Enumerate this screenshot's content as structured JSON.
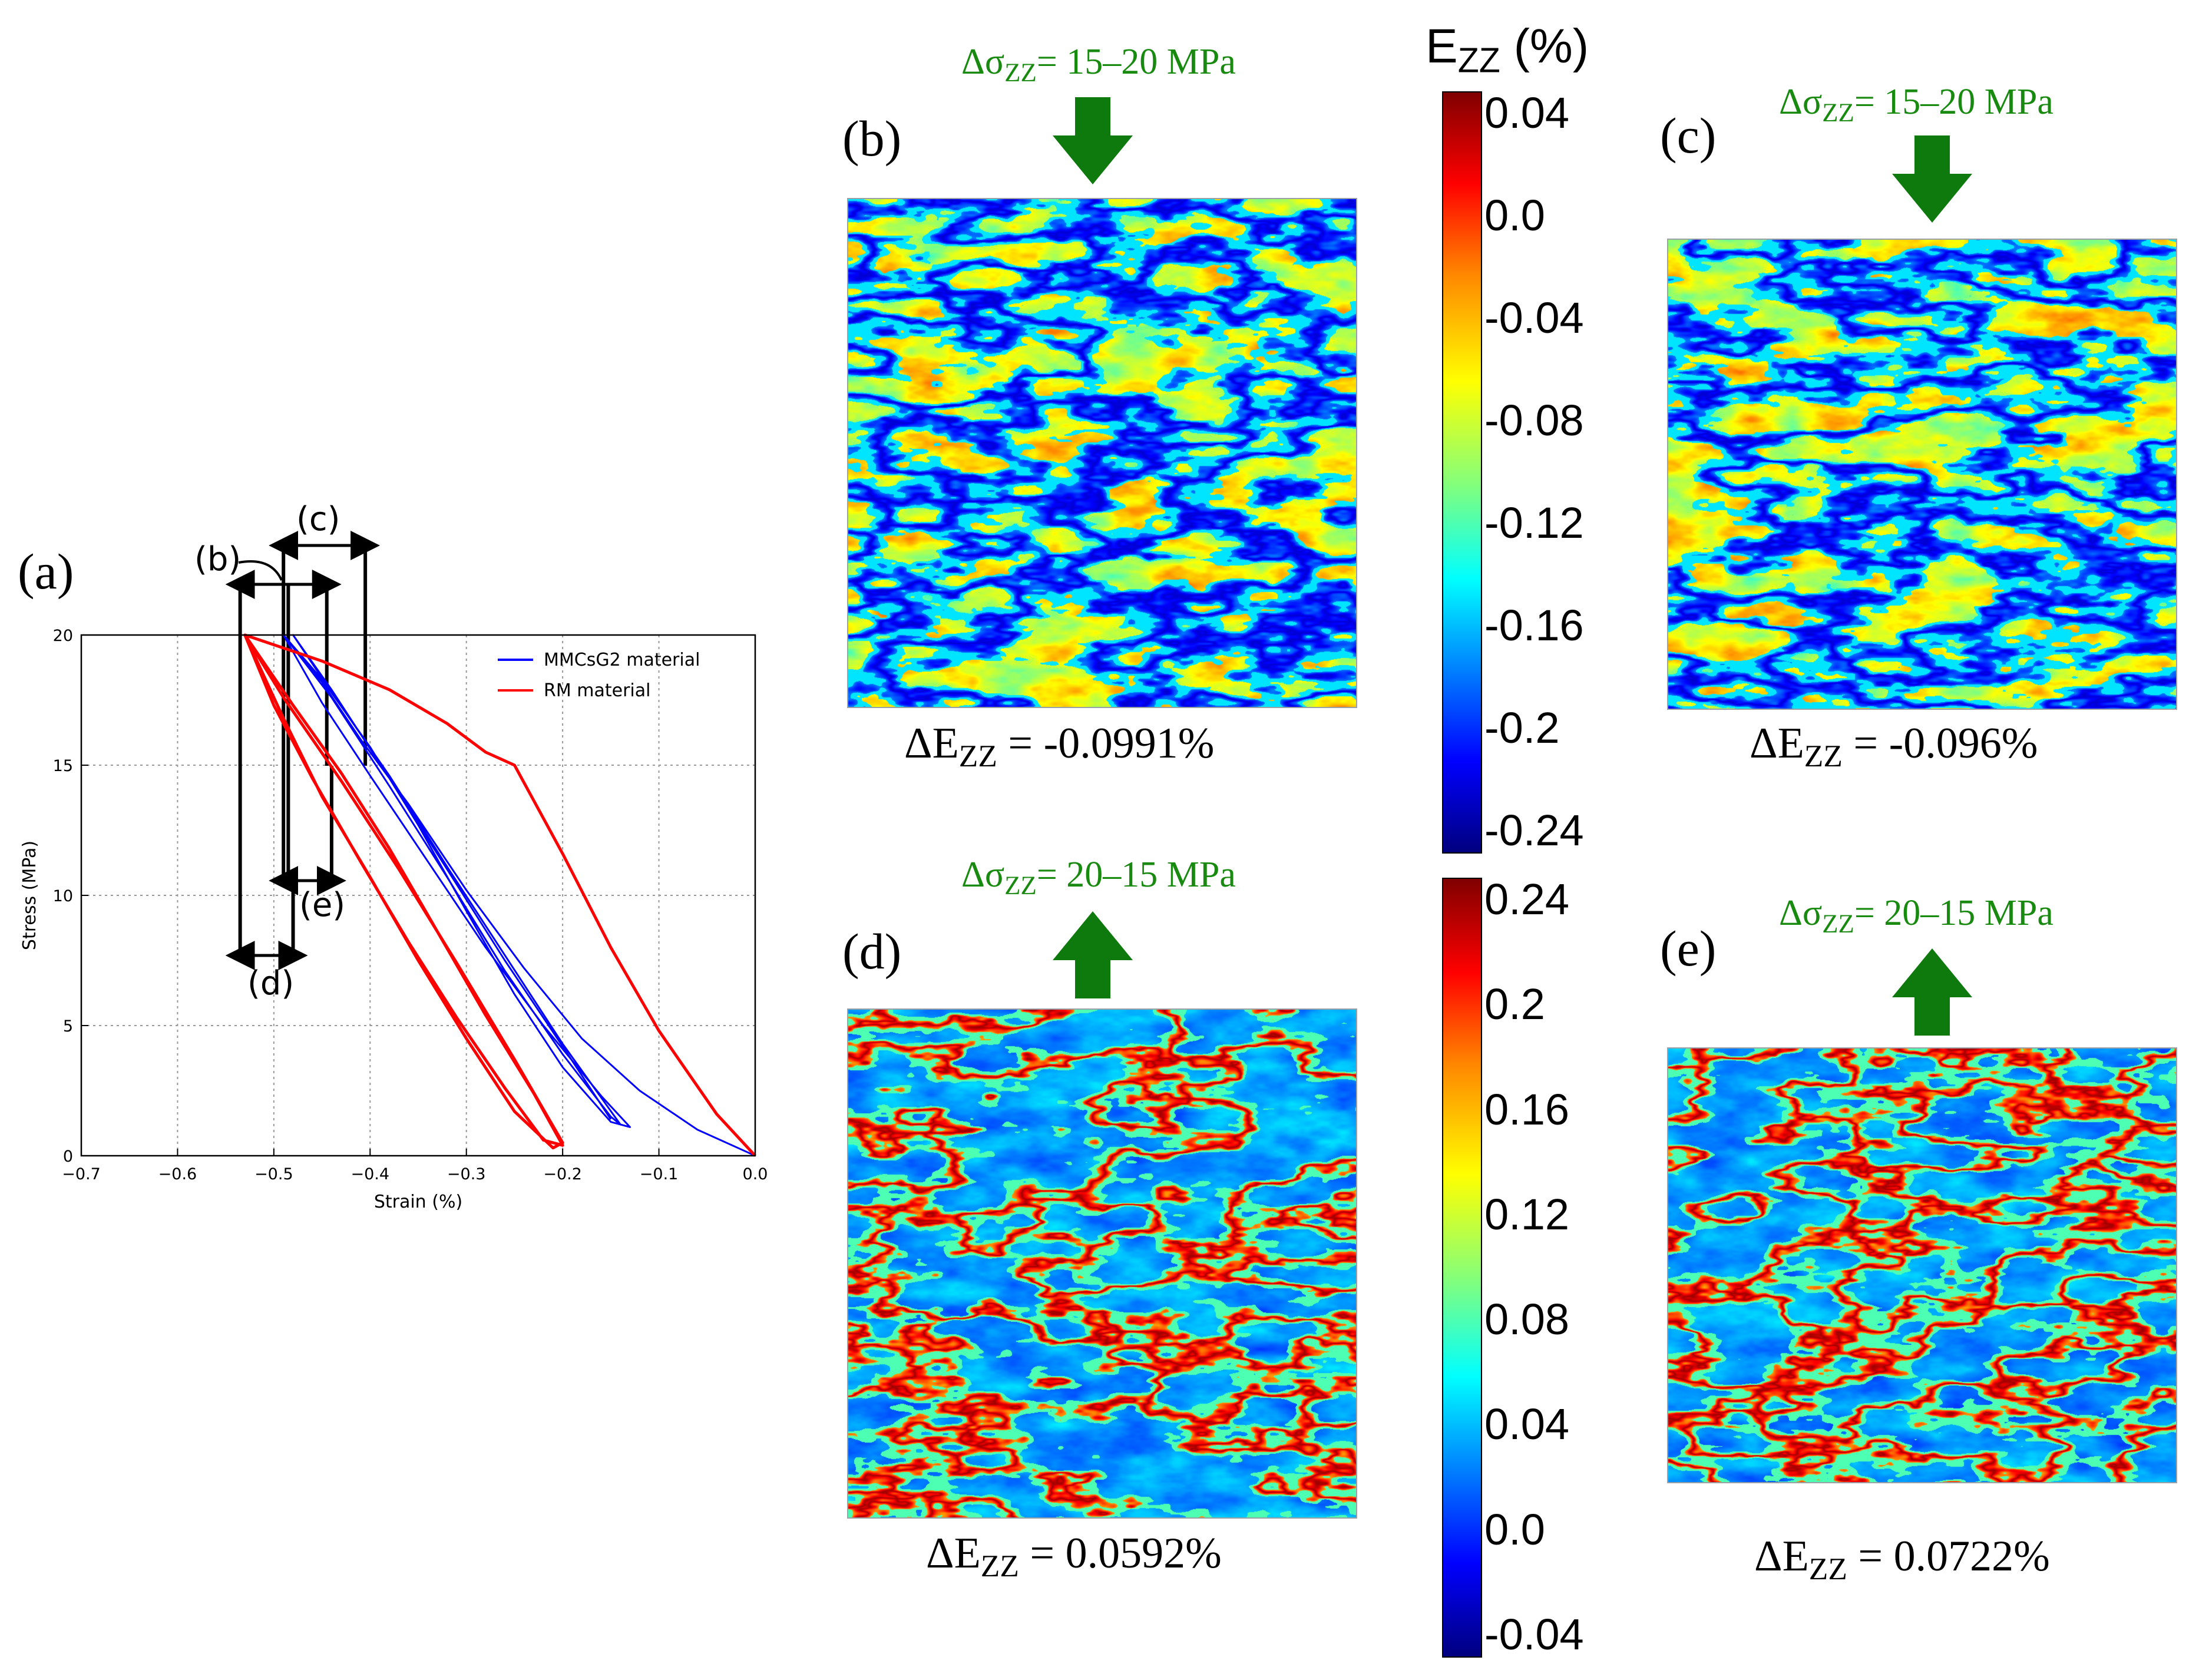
{
  "chart_data": {
    "type": "line",
    "panel_label": "(a)",
    "xlabel": "Strain (%)",
    "ylabel": "Stress (MPa)",
    "xlim": [
      -0.7,
      0.0
    ],
    "ylim": [
      0,
      20
    ],
    "x_ticks": [
      "−0.7",
      "−0.6",
      "−0.5",
      "−0.4",
      "−0.3",
      "−0.2",
      "−0.1",
      "0.0"
    ],
    "y_ticks": [
      "0",
      "5",
      "10",
      "15",
      "20"
    ],
    "grid": true,
    "legend_position": "top-right",
    "series": [
      {
        "name": "MMCsG2 material",
        "color": "#0000ff",
        "x": [
          0.0,
          -0.06,
          -0.12,
          -0.18,
          -0.24,
          -0.3,
          -0.36,
          -0.41,
          -0.45,
          -0.49,
          -0.45,
          -0.4,
          -0.35,
          -0.3,
          -0.25,
          -0.2,
          -0.15,
          -0.13,
          -0.16,
          -0.22,
          -0.28,
          -0.34,
          -0.4,
          -0.45,
          -0.49,
          -0.44,
          -0.38,
          -0.32,
          -0.26,
          -0.2,
          -0.15,
          -0.14,
          -0.2,
          -0.26,
          -0.32,
          -0.38,
          -0.44,
          -0.48,
          -0.44,
          -0.38,
          -0.32,
          -0.26,
          -0.2,
          -0.15
        ],
        "y": [
          0.0,
          1.0,
          2.5,
          4.5,
          7.2,
          10.2,
          13.5,
          16.0,
          18.2,
          20.0,
          18.3,
          15.7,
          12.7,
          9.4,
          6.2,
          3.4,
          1.3,
          1.1,
          2.3,
          5.0,
          8.0,
          11.3,
          14.6,
          17.4,
          20.0,
          17.6,
          14.2,
          10.7,
          7.1,
          3.9,
          1.5,
          1.2,
          4.3,
          7.7,
          11.1,
          14.6,
          17.8,
          20.0,
          17.9,
          14.5,
          11.0,
          7.5,
          4.2,
          1.4
        ]
      },
      {
        "name": "RM material",
        "color": "#ff0000",
        "x": [
          0.0,
          -0.04,
          -0.1,
          -0.15,
          -0.2,
          -0.25,
          -0.28,
          -0.32,
          -0.38,
          -0.45,
          -0.53,
          -0.5,
          -0.46,
          -0.41,
          -0.36,
          -0.31,
          -0.26,
          -0.22,
          -0.2,
          -0.23,
          -0.28,
          -0.33,
          -0.38,
          -0.43,
          -0.48,
          -0.53,
          -0.49,
          -0.45,
          -0.4,
          -0.35,
          -0.3,
          -0.25,
          -0.21,
          -0.2,
          -0.25,
          -0.31,
          -0.37,
          -0.43,
          -0.49,
          -0.53
        ],
        "y": [
          0.0,
          1.6,
          4.8,
          8.0,
          11.6,
          15.0,
          15.5,
          16.6,
          17.9,
          19.0,
          20.0,
          17.3,
          14.5,
          11.3,
          8.2,
          5.3,
          2.6,
          0.6,
          0.4,
          2.4,
          5.4,
          8.6,
          11.8,
          14.7,
          17.3,
          20.0,
          16.8,
          13.8,
          10.7,
          7.5,
          4.5,
          1.7,
          0.3,
          0.5,
          3.7,
          7.4,
          11.0,
          14.4,
          17.6,
          20.0
        ]
      }
    ],
    "annotations": [
      "(b)",
      "(c)",
      "(d)",
      "(e)"
    ]
  },
  "panels": {
    "b": {
      "label": "(b)",
      "stress_prefix": "Δσ",
      "stress_sub": "ZZ",
      "stress_value": "= 15–20 MPa",
      "delta_prefix": "ΔE",
      "delta_sub": "ZZ",
      "delta_value": " = -0.0991%"
    },
    "c": {
      "label": "(c)",
      "stress_prefix": "Δσ",
      "stress_sub": "ZZ",
      "stress_value": "= 15–20 MPa",
      "delta_prefix": "ΔE",
      "delta_sub": "ZZ",
      "delta_value": " = -0.096%"
    },
    "d": {
      "label": "(d)",
      "stress_prefix": "Δσ",
      "stress_sub": "ZZ",
      "stress_value": "= 20–15 MPa",
      "delta_prefix": "ΔE",
      "delta_sub": "ZZ",
      "delta_value": " = 0.0592%"
    },
    "e": {
      "label": "(e)",
      "stress_prefix": "Δσ",
      "stress_sub": "ZZ",
      "stress_value": "= 20–15 MPa",
      "delta_prefix": "ΔE",
      "delta_sub": "ZZ",
      "delta_value": " = 0.0722%"
    }
  },
  "colorbar_top": {
    "title_prefix": "E",
    "title_sub": "ZZ",
    "title_suffix": " (%)",
    "ticks": [
      "0.04",
      "0.0",
      "-0.04",
      "-0.08",
      "-0.12",
      "-0.16",
      "-0.2",
      "-0.24"
    ]
  },
  "colorbar_bottom": {
    "ticks": [
      "0.24",
      "0.2",
      "0.16",
      "0.12",
      "0.08",
      "0.04",
      "0.0",
      "-0.04"
    ]
  },
  "colors": {
    "arrow_green": "#0e7a0e",
    "label_green": "#188a10"
  }
}
